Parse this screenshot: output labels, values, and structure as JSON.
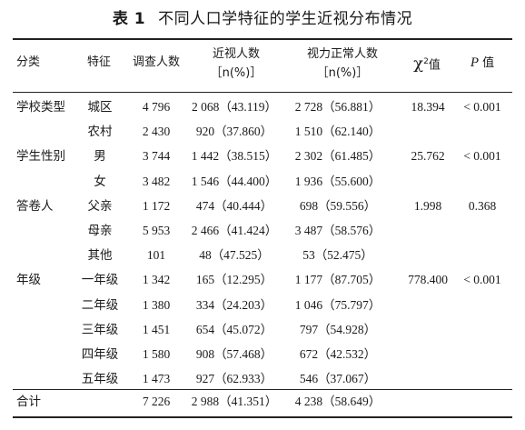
{
  "caption": {
    "number": "表 1",
    "title": "不同人口学特征的学生近视分布情况"
  },
  "headers": {
    "category": "分类",
    "feature": "特征",
    "surveyed": "调查人数",
    "myopia_line1": "近视人数",
    "myopia_line2": "［n(%)］",
    "normal_line1": "视力正常人数",
    "normal_line2": "［n(%)］",
    "chi_symbol": "χ",
    "chi_sup": "2",
    "chi_suffix": "值",
    "p_letter": "P",
    "p_suffix": " 值"
  },
  "groups": [
    {
      "name": "学校类型",
      "chi2": "18.394",
      "p": "< 0.001",
      "rows": [
        {
          "feature": "城区",
          "surveyed": "4 796",
          "myopia": "2 068（43.119）",
          "normal": "2 728（56.881）"
        },
        {
          "feature": "农村",
          "surveyed": "2 430",
          "myopia": "920（37.860）",
          "normal": "1 510（62.140）"
        }
      ]
    },
    {
      "name": "学生性别",
      "chi2": "25.762",
      "p": "< 0.001",
      "rows": [
        {
          "feature": "男",
          "surveyed": "3 744",
          "myopia": "1 442（38.515）",
          "normal": "2 302（61.485）"
        },
        {
          "feature": "女",
          "surveyed": "3 482",
          "myopia": "1 546（44.400）",
          "normal": "1 936（55.600）"
        }
      ]
    },
    {
      "name": "答卷人",
      "chi2": "1.998",
      "p": "0.368",
      "rows": [
        {
          "feature": "父亲",
          "surveyed": "1 172",
          "myopia": "474（40.444）",
          "normal": "698（59.556）"
        },
        {
          "feature": "母亲",
          "surveyed": "5 953",
          "myopia": "2 466（41.424）",
          "normal": "3 487（58.576）"
        },
        {
          "feature": "其他",
          "surveyed": "101",
          "myopia": "48（47.525）",
          "normal": "53（52.475）"
        }
      ]
    },
    {
      "name": "年级",
      "chi2": "778.400",
      "p": "< 0.001",
      "rows": [
        {
          "feature": "一年级",
          "surveyed": "1 342",
          "myopia": "165（12.295）",
          "normal": "1 177（87.705）"
        },
        {
          "feature": "二年级",
          "surveyed": "1 380",
          "myopia": "334（24.203）",
          "normal": "1 046（75.797）"
        },
        {
          "feature": "三年级",
          "surveyed": "1 451",
          "myopia": "654（45.072）",
          "normal": "797（54.928）"
        },
        {
          "feature": "四年级",
          "surveyed": "1 580",
          "myopia": "908（57.468）",
          "normal": "672（42.532）"
        },
        {
          "feature": "五年级",
          "surveyed": "1 473",
          "myopia": "927（62.933）",
          "normal": "546（37.067）"
        }
      ]
    }
  ],
  "total": {
    "label": "合计",
    "surveyed": "7 226",
    "myopia": "2 988（41.351）",
    "normal": "4 238（58.649）"
  }
}
